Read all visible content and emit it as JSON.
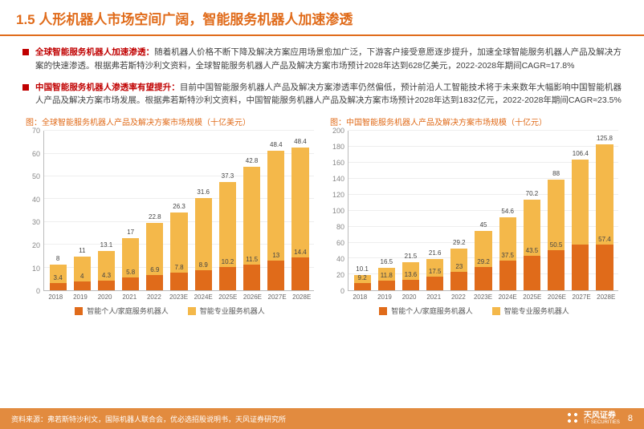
{
  "header": {
    "title": "1.5 人形机器人市场空间广阔，智能服务机器人加速渗透"
  },
  "bullets": [
    {
      "lead": "全球智能服务机器人加速渗透：",
      "text": "随着机器人价格不断下降及解决方案应用场景愈加广泛，下游客户接受意愿逐步提升，加速全球智能服务机器人产品及解决方案的快速渗透。根据弗若斯特沙利文资料，全球智能服务机器人产品及解决方案市场预计2028年达到628亿美元，2022-2028年期间CAGR≈17.8%"
    },
    {
      "lead": "中国智能服务机器人渗透率有望提升：",
      "text": "目前中国智能服务机器人产品及解决方案渗透率仍然偏低，预计前沿人工智能技术将于未来数年大幅影响中国智能机器人产品及解决方案市场发展。根据弗若斯特沙利文资料，中国智能服务机器人产品及解决方案市场预计2028年达到1832亿元，2022-2028年期间CAGR≈23.5%"
    }
  ],
  "chart1": {
    "type": "stacked-bar",
    "title": "图：全球智能服务机器人产品及解决方案市场规模（十亿美元）",
    "ylim": [
      0,
      70
    ],
    "ytick_step": 10,
    "colors": {
      "bottom": "#e06b1a",
      "top": "#f4b84a",
      "grid": "#eeeeee",
      "axis": "#bbbbbb"
    },
    "label_fontsize": 8,
    "categories": [
      "2018",
      "2019",
      "2020",
      "2021",
      "2022",
      "2023E",
      "2024E",
      "2025E",
      "2026E",
      "2027E",
      "2028E"
    ],
    "bottom_values": [
      3.4,
      4,
      4.3,
      5.8,
      6.9,
      7.8,
      8.9,
      10.2,
      11.5,
      13,
      14.4
    ],
    "top_values": [
      8,
      11,
      13.1,
      17,
      22.8,
      26.3,
      31.6,
      37.3,
      42.8,
      48.4,
      48.4
    ],
    "top_labels": [
      "8",
      "11",
      "13.1",
      "17",
      "22.8",
      "26.3",
      "31.6",
      "37.3",
      "42.8",
      "48.4",
      "48.4"
    ],
    "bottom_labels": [
      "3.4",
      "4",
      "4.3",
      "5.8",
      "6.9",
      "7.8",
      "8.9",
      "10.2",
      "11.5",
      "13",
      "14.4"
    ]
  },
  "chart2": {
    "type": "stacked-bar",
    "title": "图：中国智能服务机器人产品及解决方案市场规模（十亿元）",
    "ylim": [
      0,
      200
    ],
    "ytick_step": 20,
    "colors": {
      "bottom": "#e06b1a",
      "top": "#f4b84a",
      "grid": "#eeeeee",
      "axis": "#bbbbbb"
    },
    "label_fontsize": 8,
    "categories": [
      "2018",
      "2019",
      "2020",
      "2021",
      "2022",
      "2023E",
      "2024E",
      "2025E",
      "2026E",
      "2027E",
      "2028E"
    ],
    "bottom_values": [
      9.2,
      11.8,
      13.6,
      17.5,
      23,
      29.2,
      37.5,
      43.5,
      50.5,
      57.4,
      57.4
    ],
    "top_values": [
      10.1,
      16.5,
      21.5,
      21.6,
      29.2,
      45,
      54.6,
      70.2,
      88,
      106.4,
      125.8
    ],
    "top_labels": [
      "10.1",
      "16.5",
      "21.5",
      "21.6",
      "29.2",
      "45",
      "54.6",
      "70.2",
      "88",
      "106.4",
      "125.8"
    ],
    "bottom_labels": [
      "9.2",
      "11.8",
      "13.6",
      "17.5",
      "23",
      "29.2",
      "37.5",
      "43.5",
      "50.5",
      "",
      "57.4"
    ]
  },
  "legend": {
    "a": "智能个人/家庭服务机器人",
    "b": "智能专业服务机器人",
    "color_a": "#e06b1a",
    "color_b": "#f4b84a"
  },
  "footer": {
    "source": "资料来源：弗若斯特沙利文，国际机器人联合会，优必选招股说明书，天风证券研究所",
    "brand": "天风证券",
    "brand_sub": "TF SECURITIES",
    "page": "8"
  }
}
